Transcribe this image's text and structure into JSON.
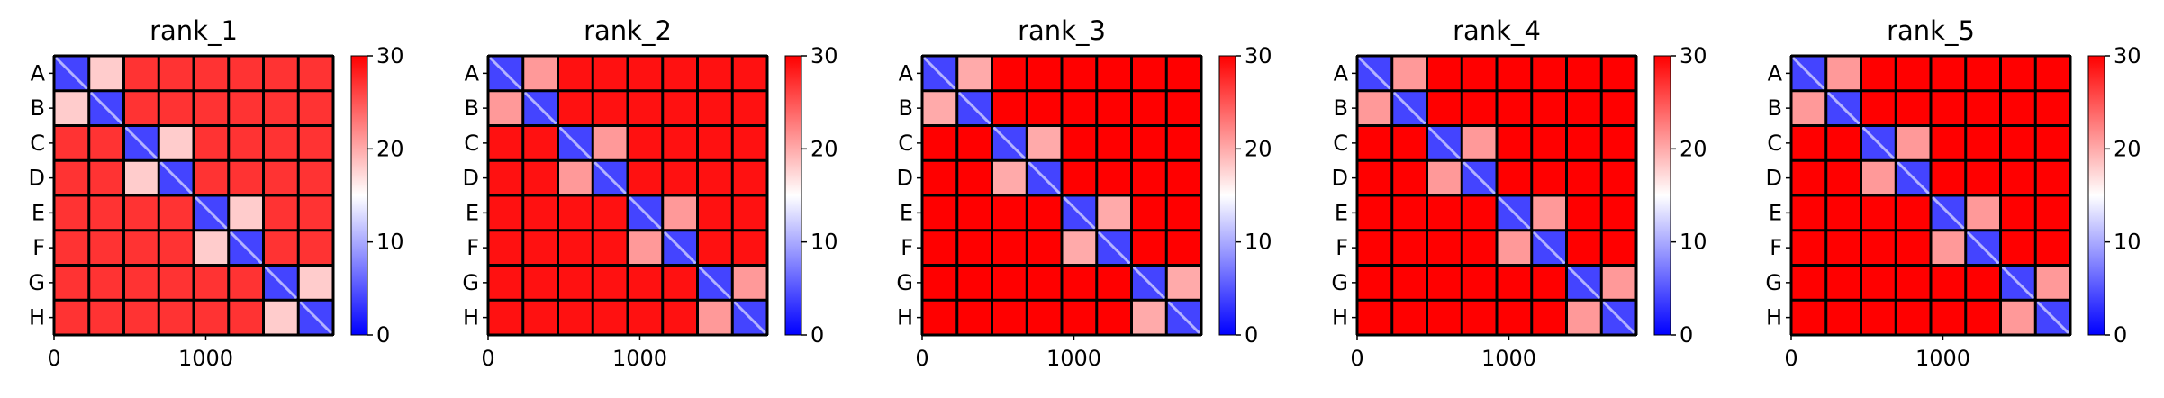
{
  "chart_data": [
    {
      "type": "heatmap",
      "title": "rank_1",
      "rows": [
        "A",
        "B",
        "C",
        "D",
        "E",
        "F",
        "G",
        "H"
      ],
      "xticks": [
        0,
        1000
      ],
      "xlim": [
        0,
        1840
      ],
      "colorbar": {
        "ticks": [
          0,
          10,
          20,
          30
        ],
        "range": [
          0,
          30
        ],
        "colormap": [
          "#0000ff",
          "#ffffff",
          "#ff0000"
        ]
      },
      "within_pairs": [
        [
          "A",
          "B"
        ],
        [
          "C",
          "D"
        ],
        [
          "E",
          "F"
        ],
        [
          "G",
          "H"
        ]
      ],
      "levels": {
        "diagonal": 4,
        "within_pair": 18,
        "background": 27
      }
    },
    {
      "type": "heatmap",
      "title": "rank_2",
      "rows": [
        "A",
        "B",
        "C",
        "D",
        "E",
        "F",
        "G",
        "H"
      ],
      "xticks": [
        0,
        1000
      ],
      "xlim": [
        0,
        1840
      ],
      "colorbar": {
        "ticks": [
          0,
          10,
          20,
          30
        ],
        "range": [
          0,
          30
        ],
        "colormap": [
          "#0000ff",
          "#ffffff",
          "#ff0000"
        ]
      },
      "within_pairs": [
        [
          "A",
          "B"
        ],
        [
          "C",
          "D"
        ],
        [
          "E",
          "F"
        ],
        [
          "G",
          "H"
        ]
      ],
      "levels": {
        "diagonal": 4,
        "within_pair": 21,
        "background": 29
      }
    },
    {
      "type": "heatmap",
      "title": "rank_3",
      "rows": [
        "A",
        "B",
        "C",
        "D",
        "E",
        "F",
        "G",
        "H"
      ],
      "xticks": [
        0,
        1000
      ],
      "xlim": [
        0,
        1840
      ],
      "colorbar": {
        "ticks": [
          0,
          10,
          20,
          30
        ],
        "range": [
          0,
          30
        ],
        "colormap": [
          "#0000ff",
          "#ffffff",
          "#ff0000"
        ]
      },
      "within_pairs": [
        [
          "A",
          "B"
        ],
        [
          "C",
          "D"
        ],
        [
          "E",
          "F"
        ],
        [
          "G",
          "H"
        ]
      ],
      "levels": {
        "diagonal": 4,
        "within_pair": 20,
        "background": 30
      }
    },
    {
      "type": "heatmap",
      "title": "rank_4",
      "rows": [
        "A",
        "B",
        "C",
        "D",
        "E",
        "F",
        "G",
        "H"
      ],
      "xticks": [
        0,
        1000
      ],
      "xlim": [
        0,
        1840
      ],
      "colorbar": {
        "ticks": [
          0,
          10,
          20,
          30
        ],
        "range": [
          0,
          30
        ],
        "colormap": [
          "#0000ff",
          "#ffffff",
          "#ff0000"
        ]
      },
      "within_pairs": [
        [
          "A",
          "B"
        ],
        [
          "C",
          "D"
        ],
        [
          "E",
          "F"
        ],
        [
          "G",
          "H"
        ]
      ],
      "levels": {
        "diagonal": 4,
        "within_pair": 21,
        "background": 30
      }
    },
    {
      "type": "heatmap",
      "title": "rank_5",
      "rows": [
        "A",
        "B",
        "C",
        "D",
        "E",
        "F",
        "G",
        "H"
      ],
      "xticks": [
        0,
        1000
      ],
      "xlim": [
        0,
        1840
      ],
      "colorbar": {
        "ticks": [
          0,
          10,
          20,
          30
        ],
        "range": [
          0,
          30
        ],
        "colormap": [
          "#0000ff",
          "#ffffff",
          "#ff0000"
        ]
      },
      "within_pairs": [
        [
          "A",
          "B"
        ],
        [
          "C",
          "D"
        ],
        [
          "E",
          "F"
        ],
        [
          "G",
          "H"
        ]
      ],
      "levels": {
        "diagonal": 4,
        "within_pair": 21,
        "background": 30
      }
    }
  ]
}
